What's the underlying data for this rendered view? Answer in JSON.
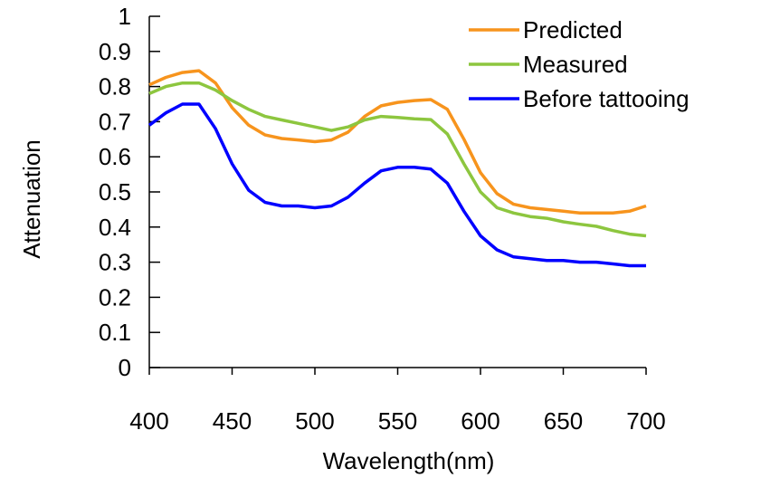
{
  "chart_data": {
    "type": "line",
    "title": "",
    "xlabel": "Wavelength(nm)",
    "ylabel": "Attenuation",
    "xlim": [
      400,
      700
    ],
    "ylim": [
      0,
      1
    ],
    "xticks": [
      400,
      450,
      500,
      550,
      600,
      650,
      700
    ],
    "xtick_labels": [
      "400",
      "450",
      "500",
      "550",
      "600",
      "650",
      "700"
    ],
    "yticks": [
      0,
      0.1,
      0.2,
      0.3,
      0.4,
      0.5,
      0.6,
      0.7,
      0.8,
      0.9,
      1
    ],
    "ytick_labels": [
      "0",
      "0.1",
      "0.2",
      "0.3",
      "0.4",
      "0.5",
      "0.6",
      "0.7",
      "0.8",
      "0.9",
      "1"
    ],
    "grid": false,
    "legend": "top-right",
    "x": [
      400,
      410,
      420,
      430,
      440,
      450,
      460,
      470,
      480,
      490,
      500,
      510,
      520,
      530,
      540,
      550,
      560,
      570,
      580,
      590,
      600,
      610,
      620,
      630,
      640,
      650,
      660,
      670,
      680,
      690,
      700
    ],
    "series": [
      {
        "name": "Predicted",
        "color": "#f7941d",
        "values": [
          0.805,
          0.826,
          0.84,
          0.845,
          0.81,
          0.74,
          0.69,
          0.662,
          0.652,
          0.648,
          0.643,
          0.648,
          0.67,
          0.715,
          0.745,
          0.755,
          0.76,
          0.763,
          0.735,
          0.65,
          0.555,
          0.495,
          0.465,
          0.455,
          0.45,
          0.445,
          0.44,
          0.44,
          0.44,
          0.445,
          0.46
        ]
      },
      {
        "name": "Measured",
        "color": "#8dc63f",
        "values": [
          0.78,
          0.8,
          0.81,
          0.81,
          0.79,
          0.76,
          0.735,
          0.715,
          0.705,
          0.695,
          0.685,
          0.675,
          0.685,
          0.705,
          0.715,
          0.712,
          0.708,
          0.706,
          0.665,
          0.58,
          0.5,
          0.455,
          0.44,
          0.43,
          0.425,
          0.415,
          0.408,
          0.402,
          0.39,
          0.38,
          0.375
        ]
      },
      {
        "name": "Before tattooing",
        "color": "#0000ff",
        "values": [
          0.69,
          0.725,
          0.75,
          0.75,
          0.68,
          0.58,
          0.505,
          0.47,
          0.46,
          0.46,
          0.455,
          0.46,
          0.485,
          0.525,
          0.56,
          0.57,
          0.57,
          0.565,
          0.525,
          0.445,
          0.375,
          0.335,
          0.315,
          0.31,
          0.305,
          0.305,
          0.3,
          0.3,
          0.295,
          0.29,
          0.29
        ]
      }
    ]
  }
}
